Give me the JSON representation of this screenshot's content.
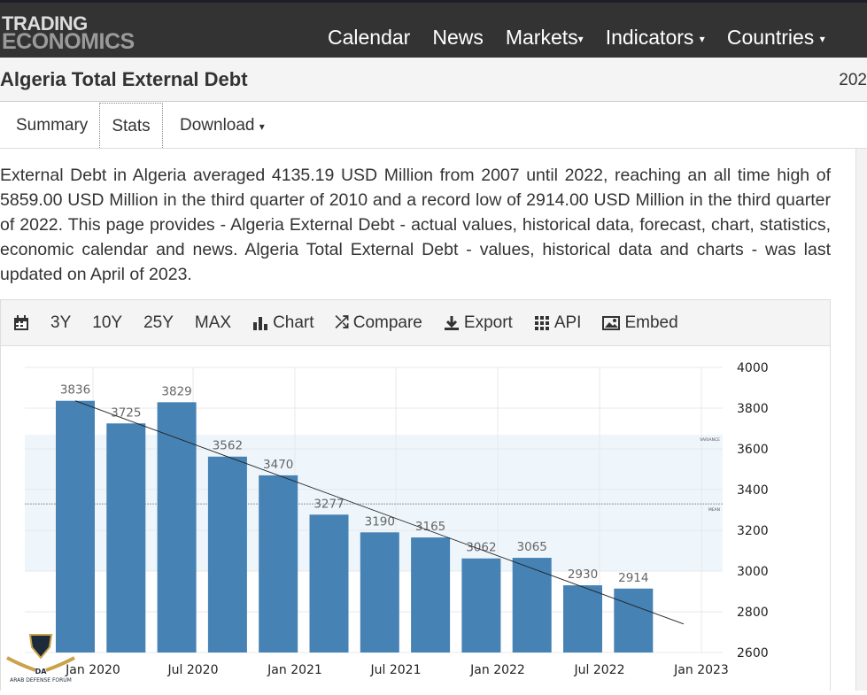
{
  "header": {
    "logo_line1": "TRADING",
    "logo_line2": "ECONOMICS",
    "nav": [
      {
        "label": "Calendar"
      },
      {
        "label": "News"
      },
      {
        "label": "Markets",
        "caret": "▾"
      },
      {
        "label": "Indicators",
        "caret": "▾"
      },
      {
        "label": "Countries",
        "caret": "▾"
      }
    ]
  },
  "title": {
    "text": "Algeria Total External Debt",
    "year": "202"
  },
  "tabs": {
    "summary": "Summary",
    "stats": "Stats",
    "download": "Download",
    "caret": "▾"
  },
  "description": "External Debt in Algeria averaged 4135.19 USD Million from 2007 until 2022, reaching an all time high of 5859.00 USD Million in the third quarter of 2010 and a record low of 2914.00 USD Million in the third quarter of 2022. This page provides - Algeria External Debt - actual values, historical data, forecast, chart, statistics, economic calendar and news. Algeria Total External Debt - values, historical data and charts - was last updated on April of 2023.",
  "toolbar": {
    "r3y": "3Y",
    "r10y": "10Y",
    "r25y": "25Y",
    "max": "MAX",
    "chart": "Chart",
    "compare": "Compare",
    "export": "Export",
    "api": "API",
    "embed": "Embed"
  },
  "watermark": {
    "text": "ARAB DEFENSE FORUM",
    "abbr": "DA"
  },
  "chart_data": {
    "type": "bar",
    "categories": [
      "Q4 2019",
      "Q1 2020",
      "Q2 2020",
      "Q3 2020",
      "Q4 2020",
      "Q1 2021",
      "Q2 2021",
      "Q3 2021",
      "Q4 2021",
      "Q1 2022",
      "Q2 2022",
      "Q3 2022"
    ],
    "values": [
      3836,
      3725,
      3829,
      3562,
      3470,
      3277,
      3190,
      3165,
      3062,
      3065,
      2930,
      2914
    ],
    "ylim": [
      2600,
      4000
    ],
    "yticks": [
      4000,
      3800,
      3600,
      3400,
      3200,
      3000,
      2800,
      2600
    ],
    "xticks": [
      "Jan 2020",
      "Jul 2020",
      "Jan 2021",
      "Jul 2021",
      "Jan 2022",
      "Jul 2022",
      "Jan 2023"
    ],
    "variance_band": [
      3000,
      3670
    ],
    "mean": 3330,
    "variance_label": "VARIANCE",
    "mean_label": "MEAN",
    "trendline": [
      3836,
      2740
    ],
    "bar_color": "#4682b4",
    "grid": true
  }
}
